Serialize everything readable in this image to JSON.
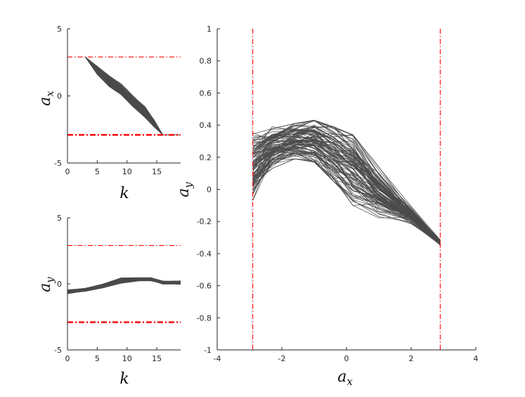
{
  "chart_data": [
    {
      "id": "ax-vs-k",
      "type": "line",
      "title": "",
      "xlabel": "k",
      "ylabel": "a_x",
      "xlim": [
        0,
        19
      ],
      "ylim": [
        -5,
        5
      ],
      "xticks": [
        0,
        5,
        10,
        15
      ],
      "yticks": [
        -5,
        0,
        5
      ],
      "limits": [
        {
          "axis": "y",
          "value": 2.9,
          "style": "dashdot-thin",
          "color": "#ff0000"
        },
        {
          "axis": "y",
          "value": -2.9,
          "style": "dashdot-thick",
          "color": "#ff0000"
        }
      ],
      "series_note": "approx. 100 trajectories",
      "series_template": [
        [
          3,
          2.9
        ],
        [
          5,
          1.9
        ],
        [
          7,
          1.1
        ],
        [
          9,
          0.5
        ],
        [
          11,
          -0.4
        ],
        [
          13,
          -1.2
        ],
        [
          14.5,
          -2.0
        ],
        [
          16,
          -2.9
        ],
        [
          19,
          -2.9
        ]
      ],
      "series_spread": [
        0,
        0.3,
        0.4,
        0.4,
        0.4,
        0.4,
        0.3,
        0,
        0
      ]
    },
    {
      "id": "ay-vs-k",
      "type": "line",
      "title": "",
      "xlabel": "k",
      "ylabel": "a_y",
      "xlim": [
        0,
        19
      ],
      "ylim": [
        -5,
        5
      ],
      "xticks": [
        0,
        5,
        10,
        15
      ],
      "yticks": [
        -5,
        0,
        5
      ],
      "limits": [
        {
          "axis": "y",
          "value": 2.9,
          "style": "dashdot-thin",
          "color": "#ff0000"
        },
        {
          "axis": "y",
          "value": -2.9,
          "style": "dashdot-thick",
          "color": "#ff0000"
        }
      ],
      "series_note": "approx. 100 trajectories",
      "series_template": [
        [
          0,
          -0.6
        ],
        [
          3,
          -0.45
        ],
        [
          6,
          -0.15
        ],
        [
          9,
          0.25
        ],
        [
          12,
          0.35
        ],
        [
          14,
          0.35
        ],
        [
          16,
          0.1
        ],
        [
          19,
          0.1
        ]
      ],
      "series_spread": [
        0.15,
        0.12,
        0.15,
        0.2,
        0.12,
        0.12,
        0.2,
        0.25
      ]
    },
    {
      "id": "ay-vs-ax",
      "type": "line",
      "title": "",
      "xlabel": "a_x",
      "ylabel": "a_y",
      "xlim": [
        -4,
        4
      ],
      "ylim": [
        -1,
        1
      ],
      "xticks": [
        -4,
        -2,
        0,
        2,
        4
      ],
      "yticks": [
        -1,
        -0.8,
        -0.6,
        -0.4,
        -0.2,
        0,
        0.2,
        0.4,
        0.6,
        0.8,
        1
      ],
      "limits": [
        {
          "axis": "x",
          "value": -2.9,
          "style": "dashdot-thin",
          "color": "#ff0000"
        },
        {
          "axis": "x",
          "value": 2.9,
          "style": "dashdot-thin",
          "color": "#ff0000"
        }
      ],
      "series_note": "approx. 100 trajectories",
      "series_template": [
        [
          -2.9,
          0.15
        ],
        [
          -2.3,
          0.26
        ],
        [
          -1.6,
          0.3
        ],
        [
          -1.0,
          0.3
        ],
        [
          -0.4,
          0.22
        ],
        [
          0.2,
          0.12
        ],
        [
          1.0,
          -0.02
        ],
        [
          2.0,
          -0.16
        ],
        [
          2.9,
          -0.33
        ]
      ],
      "series_spread": [
        0.22,
        0.13,
        0.11,
        0.13,
        0.17,
        0.22,
        0.16,
        0.07,
        0.03
      ]
    }
  ]
}
